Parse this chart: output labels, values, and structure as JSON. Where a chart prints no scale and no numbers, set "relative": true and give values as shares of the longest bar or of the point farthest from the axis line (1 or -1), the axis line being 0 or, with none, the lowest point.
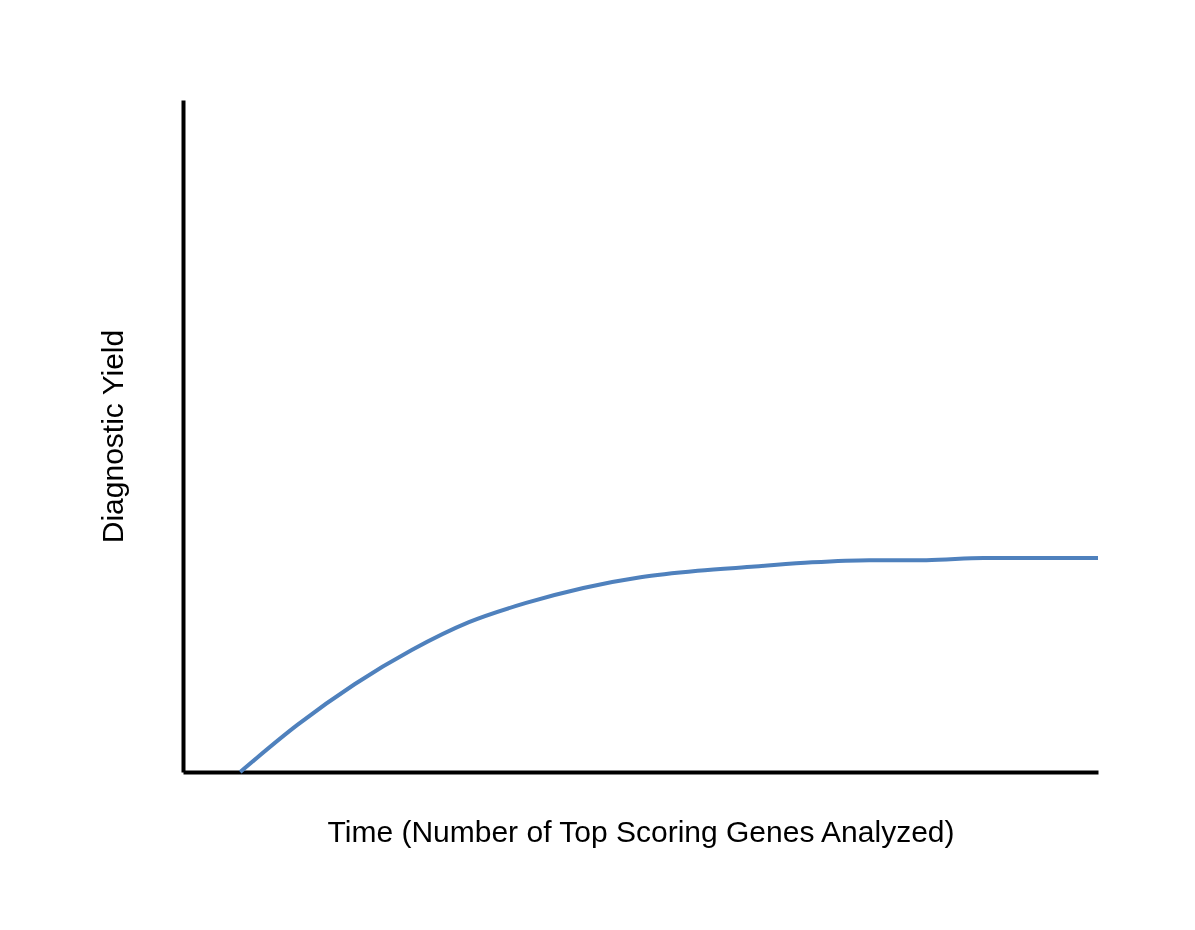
{
  "chart_data": {
    "type": "line",
    "relative": true,
    "xlabel": "Time (Number of Top Scoring Genes Analyzed)",
    "ylabel": "Diagnostic Yield",
    "categories": [
      null,
      null,
      null,
      null,
      null,
      null,
      null,
      null,
      null,
      null,
      null,
      null,
      null,
      null,
      null,
      null,
      null
    ],
    "series": [
      {
        "color": "#4f81bd",
        "values": [
          null,
          0,
          0.22,
          0.41,
          0.57,
          0.7,
          0.79,
          0.86,
          0.91,
          0.94,
          0.96,
          0.98,
          0.99,
          0.99,
          1.0,
          1.0,
          1.0
        ]
      }
    ],
    "marker": "none",
    "line_style": "solid"
  }
}
